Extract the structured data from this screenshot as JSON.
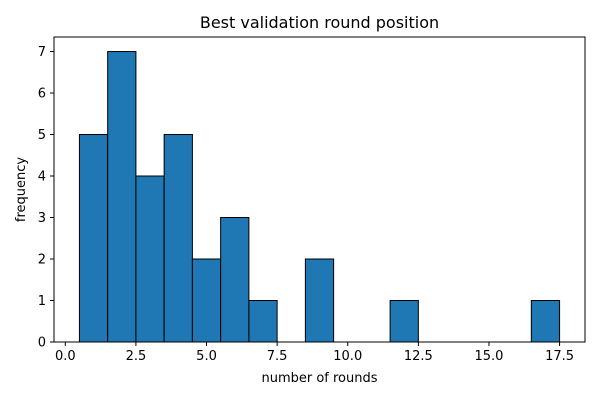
{
  "chart_data": {
    "type": "bar",
    "subtype": "histogram",
    "title": "Best validation round position",
    "xlabel": "number of rounds",
    "ylabel": "frequency",
    "xlim": [
      -0.4,
      18.4
    ],
    "ylim": [
      0,
      7.35
    ],
    "xticks": [
      0.0,
      2.5,
      5.0,
      7.5,
      10.0,
      12.5,
      15.0,
      17.5
    ],
    "xtick_labels": [
      "0.0",
      "2.5",
      "5.0",
      "7.5",
      "10.0",
      "12.5",
      "15.0",
      "17.5"
    ],
    "yticks": [
      0,
      1,
      2,
      3,
      4,
      5,
      6,
      7
    ],
    "ytick_labels": [
      "0",
      "1",
      "2",
      "3",
      "4",
      "5",
      "6",
      "7"
    ],
    "bin_edges": [
      0.5,
      1.5,
      2.5,
      3.5,
      4.5,
      5.5,
      6.5,
      7.5,
      8.5,
      9.5,
      10.5,
      11.5,
      12.5,
      13.5,
      14.5,
      15.5,
      16.5,
      17.5
    ],
    "values": [
      5,
      7,
      4,
      5,
      2,
      3,
      1,
      0,
      2,
      0,
      0,
      1,
      0,
      0,
      0,
      0,
      1
    ],
    "bar_color": "#1f77b4",
    "edge_color": "#000000",
    "grid": false,
    "legend": false
  }
}
